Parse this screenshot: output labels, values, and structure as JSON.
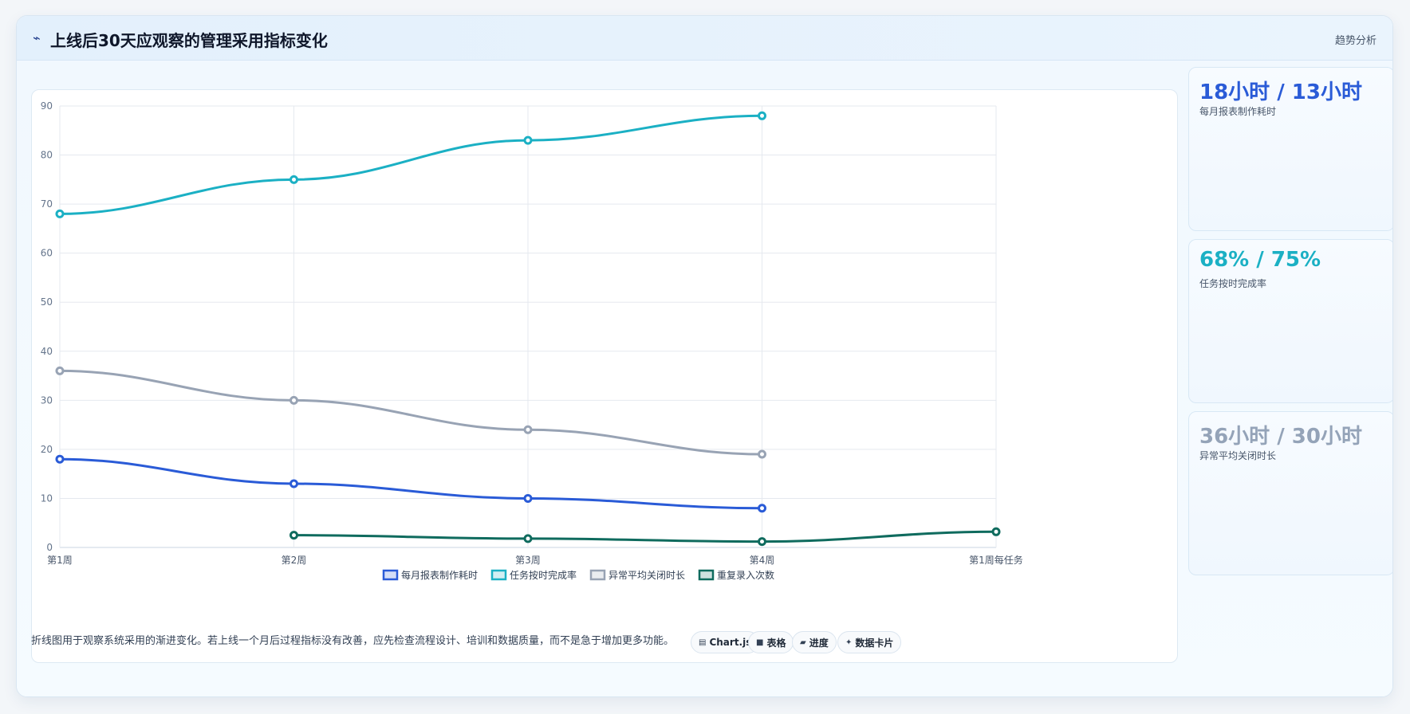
{
  "header": {
    "icon": "chart-line-icon",
    "title": "上线后30天应观察的管理采用指标变化",
    "tag": "趋势分析"
  },
  "chart_data": {
    "type": "line",
    "categories": [
      "第1周",
      "第2周",
      "第3周",
      "第4周",
      "第1周每任务"
    ],
    "ylim": [
      0,
      90
    ],
    "yticks": [
      0,
      10,
      20,
      30,
      40,
      50,
      60,
      70,
      80,
      90
    ],
    "grid": true,
    "legend_position": "bottom",
    "series": [
      {
        "name": "每月报表制作耗时",
        "color": "#2a5bd7",
        "values": [
          18,
          13,
          10,
          8,
          null
        ]
      },
      {
        "name": "任务按时完成率",
        "color": "#1bb0c4",
        "values": [
          68,
          75,
          83,
          88,
          null
        ]
      },
      {
        "name": "异常平均关闭时长",
        "color": "#98a3b4",
        "values": [
          36,
          30,
          24,
          19,
          null
        ]
      },
      {
        "name": "重复录入次数",
        "color": "#0f6b5e",
        "values": [
          null,
          2.5,
          1.8,
          1.2,
          3.2
        ]
      }
    ]
  },
  "stats": [
    {
      "value": "18小时 / 13小时",
      "label": "每月报表制作耗时",
      "color": "#2a5bd7"
    },
    {
      "value": "68% / 75%",
      "label": "任务按时完成率",
      "color": "#1bb0c4"
    },
    {
      "value": "36小时 / 30小时",
      "label": "异常平均关闭时长",
      "color": "#94a3b8"
    }
  ],
  "footer": {
    "note": "折线图用于观察系统采用的渐进变化。若上线一个月后过程指标没有改善，应先检查流程设计、培训和数据质量，而不是急于增加更多功能。",
    "pills": [
      {
        "icon": "chart-icon",
        "glyph": "▤",
        "label": "Chart.js"
      },
      {
        "icon": "table-icon",
        "glyph": "■",
        "label": "表格"
      },
      {
        "icon": "progress-icon",
        "glyph": "▰",
        "label": "进度"
      },
      {
        "icon": "sparkle-icon",
        "glyph": "✦",
        "label": "数据卡片"
      }
    ]
  }
}
